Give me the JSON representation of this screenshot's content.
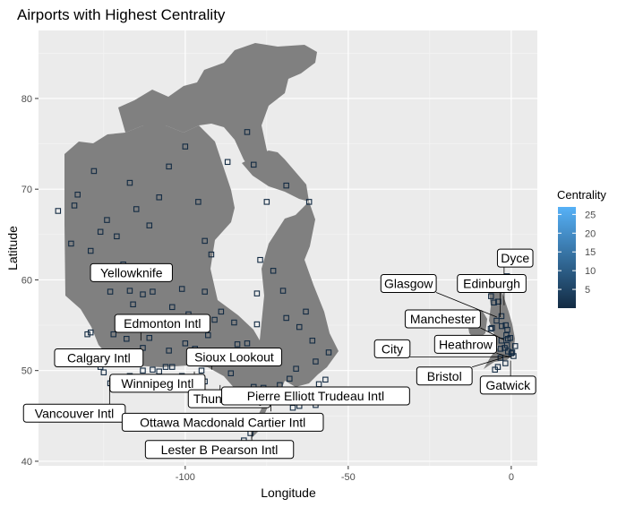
{
  "chart_data": {
    "type": "scatter",
    "title": "Airports with Highest Centrality",
    "xlabel": "Longitude",
    "ylabel": "Latitude",
    "xlim": [
      -145,
      8
    ],
    "ylim": [
      39.5,
      87.5
    ],
    "x_ticks": [
      -100,
      -50,
      0
    ],
    "y_ticks": [
      40,
      50,
      60,
      70,
      80
    ],
    "grid": true,
    "legend": {
      "title": "Centrality",
      "placement": "right",
      "min": 0,
      "max": 27,
      "ticks": [
        5,
        10,
        15,
        20,
        25
      ],
      "color_low": "#132b43",
      "color_high": "#56b1f7"
    },
    "land_color": "#808080",
    "labels": [
      {
        "text": "Yellowknife",
        "x": -114.4,
        "y": 60.8,
        "tx": -116.5,
        "ty": 60.8
      },
      {
        "text": "Edmonton Intl",
        "x": -113.6,
        "y": 53.3,
        "tx": -107,
        "ty": 55.2
      },
      {
        "text": "Calgary Intl",
        "x": -114.0,
        "y": 51.1,
        "tx": -126.5,
        "ty": 51.4
      },
      {
        "text": "Sioux Lookout",
        "x": -91.9,
        "y": 50.1,
        "tx": -85,
        "ty": 51.5
      },
      {
        "text": "Winnipeg Intl",
        "x": -97.2,
        "y": 49.9,
        "tx": -108.5,
        "ty": 48.6
      },
      {
        "text": "Vancouver Intl",
        "x": -123.2,
        "y": 49.2,
        "tx": -134,
        "ty": 45.3
      },
      {
        "text": "Thunder Bay",
        "x": -89.3,
        "y": 48.4,
        "tx": -86.5,
        "ty": 46.9
      },
      {
        "text": "Pierre Elliott Trudeau Intl",
        "x": -73.7,
        "y": 45.5,
        "tx": -60,
        "ty": 47.2
      },
      {
        "text": "Ottawa Macdonald Cartier Intl",
        "x": -75.7,
        "y": 45.3,
        "tx": -88.5,
        "ty": 44.3
      },
      {
        "text": "Lester B Pearson Intl",
        "x": -79.6,
        "y": 43.7,
        "tx": -89.5,
        "ty": 41.3
      },
      {
        "text": "Dyce",
        "x": -2.2,
        "y": 57.2,
        "tx": 1.2,
        "ty": 62.4
      },
      {
        "text": "Glasgow",
        "x": -4.4,
        "y": 55.9,
        "tx": -31.5,
        "ty": 59.6
      },
      {
        "text": "Edinburgh",
        "x": -3.4,
        "y": 55.9,
        "tx": -6,
        "ty": 59.6
      },
      {
        "text": "Manchester",
        "x": -2.3,
        "y": 53.4,
        "tx": -21,
        "ty": 55.7
      },
      {
        "text": "Heathrow",
        "x": -0.5,
        "y": 51.5,
        "tx": -14,
        "ty": 52.9
      },
      {
        "text": "City",
        "x": 0.1,
        "y": 51.5,
        "tx": -36.5,
        "ty": 52.4
      },
      {
        "text": "Bristol",
        "x": -2.7,
        "y": 51.4,
        "tx": -20.5,
        "ty": 49.4
      },
      {
        "text": "Gatwick",
        "x": -0.2,
        "y": 51.1,
        "tx": -1,
        "ty": 48.4
      }
    ],
    "points": [
      [
        -139,
        67.6
      ],
      [
        -135,
        64.0
      ],
      [
        -133,
        69.4
      ],
      [
        -134,
        68.2
      ],
      [
        -128,
        72.0
      ],
      [
        -126,
        65.3
      ],
      [
        -124,
        66.6
      ],
      [
        -121,
        64.8
      ],
      [
        -117,
        70.7
      ],
      [
        -115,
        67.8
      ],
      [
        -111,
        66.0
      ],
      [
        -108,
        69.1
      ],
      [
        -105,
        72.5
      ],
      [
        -100,
        74.7
      ],
      [
        -96,
        68.6
      ],
      [
        -94,
        64.3
      ],
      [
        -92,
        62.8
      ],
      [
        -87,
        73.0
      ],
      [
        -81,
        76.3
      ],
      [
        -79,
        72.7
      ],
      [
        -75,
        68.6
      ],
      [
        -69,
        70.4
      ],
      [
        -62,
        68.6
      ],
      [
        -123,
        58.7
      ],
      [
        -128,
        61.0
      ],
      [
        -129,
        63.2
      ],
      [
        -119,
        61.7
      ],
      [
        -117,
        58.8
      ],
      [
        -113,
        58.4
      ],
      [
        -110,
        58.7
      ],
      [
        -104,
        57.0
      ],
      [
        -101,
        59.0
      ],
      [
        -99,
        56.2
      ],
      [
        -94,
        58.7
      ],
      [
        -91,
        55.6
      ],
      [
        -89,
        56.5
      ],
      [
        -85,
        55.3
      ],
      [
        -84,
        52.9
      ],
      [
        -81,
        53.0
      ],
      [
        -78,
        55.1
      ],
      [
        -78,
        58.5
      ],
      [
        -77,
        62.2
      ],
      [
        -73,
        61.0
      ],
      [
        -70,
        58.8
      ],
      [
        -69,
        55.8
      ],
      [
        -65,
        54.8
      ],
      [
        -63,
        56.5
      ],
      [
        -61,
        53.3
      ],
      [
        -60,
        51.0
      ],
      [
        -56,
        52.0
      ],
      [
        -57,
        49.0
      ],
      [
        -59,
        48.5
      ],
      [
        -66,
        50.2
      ],
      [
        -68,
        49.1
      ],
      [
        -71,
        48.4
      ],
      [
        -72,
        46.5
      ],
      [
        -76,
        48.1
      ],
      [
        -79,
        48.2
      ],
      [
        -80,
        46.4
      ],
      [
        -84,
        46.5
      ],
      [
        -86,
        49.7
      ],
      [
        -88,
        51.4
      ],
      [
        -93,
        53.9
      ],
      [
        -95,
        50.0
      ],
      [
        -97,
        52.4
      ],
      [
        -100,
        53.0
      ],
      [
        -102,
        54.8
      ],
      [
        -105,
        52.2
      ],
      [
        -106,
        50.4
      ],
      [
        -108,
        49.9
      ],
      [
        -111,
        53.6
      ],
      [
        -113,
        50.0
      ],
      [
        -117,
        49.4
      ],
      [
        -118,
        53.5
      ],
      [
        -120,
        55.8
      ],
      [
        -122,
        54.0
      ],
      [
        -124,
        52.1
      ],
      [
        -126,
        50.4
      ],
      [
        -129,
        54.2
      ],
      [
        -130,
        54.0
      ],
      [
        -125,
        49.8
      ],
      [
        -123,
        48.6
      ],
      [
        -118,
        50.8
      ],
      [
        -116,
        57.3
      ],
      [
        -113,
        52.5
      ],
      [
        -110,
        50.1
      ],
      [
        -104,
        50.4
      ],
      [
        -101,
        49.4
      ],
      [
        -97,
        49.1
      ],
      [
        -94,
        48.8
      ],
      [
        -82,
        42.3
      ],
      [
        -80,
        43.1
      ],
      [
        -76,
        44.3
      ],
      [
        -74,
        45.0
      ],
      [
        -71,
        46.8
      ],
      [
        -67,
        45.9
      ],
      [
        -65,
        46.1
      ],
      [
        -63,
        44.9
      ],
      [
        -60,
        46.2
      ],
      [
        -66,
        44.3
      ],
      [
        -6.3,
        54.6
      ],
      [
        -5.9,
        54.7
      ],
      [
        -3.0,
        53.3
      ],
      [
        -1.2,
        54.5
      ],
      [
        -1.7,
        55.0
      ],
      [
        -3.1,
        58.9
      ],
      [
        -1.3,
        60.4
      ],
      [
        -6.2,
        58.2
      ],
      [
        -5.3,
        57.5
      ],
      [
        -4.0,
        57.6
      ],
      [
        -2.0,
        52.5
      ],
      [
        -1.3,
        52.8
      ],
      [
        1.2,
        52.7
      ],
      [
        0.3,
        52.0
      ],
      [
        -1.0,
        52.1
      ],
      [
        -3.3,
        51.4
      ],
      [
        -4.1,
        50.4
      ],
      [
        -5.0,
        50.1
      ],
      [
        -1.8,
        50.8
      ],
      [
        0.0,
        51.9
      ],
      [
        0.7,
        51.6
      ],
      [
        -2.9,
        54.9
      ],
      [
        -1.5,
        53.9
      ],
      [
        -1.0,
        53.5
      ],
      [
        -0.3,
        53.6
      ],
      [
        -3.3,
        52.4
      ],
      [
        -4.5,
        55.5
      ],
      [
        -3.0,
        56.0
      ]
    ]
  }
}
